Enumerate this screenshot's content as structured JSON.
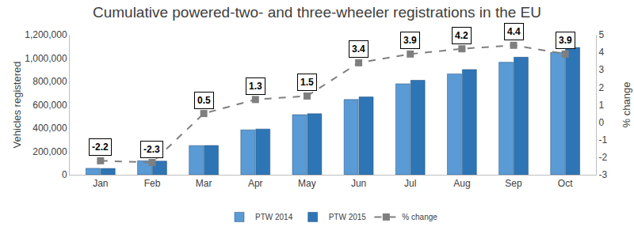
{
  "chart_data": {
    "type": "bar",
    "title": "Cumulative powered-two- and three-wheeler registrations in the EU",
    "y_label": "Vehicles registered",
    "y2_label": "% change",
    "categories": [
      "Jan",
      "Feb",
      "Mar",
      "Apr",
      "May",
      "Jun",
      "Jul",
      "Aug",
      "Sep",
      "Oct"
    ],
    "series": [
      {
        "name": "PTW 2014",
        "type": "bar",
        "color": "#5b9bd5",
        "values": [
          55000,
          120000,
          250000,
          385000,
          515000,
          645000,
          780000,
          865000,
          965000,
          1050000
        ]
      },
      {
        "name": "PTW 2015",
        "type": "bar",
        "color": "#2e75b6",
        "values": [
          54000,
          117000,
          251000,
          392000,
          523000,
          667000,
          810000,
          902000,
          1008000,
          1091000
        ]
      },
      {
        "name": "% change",
        "type": "line",
        "axis": "y2",
        "color": "#7f7f7f",
        "marker": "square",
        "line_style": "dash",
        "data_labels": true,
        "values": [
          -2.2,
          -2.3,
          0.5,
          1.3,
          1.5,
          3.4,
          3.9,
          4.2,
          4.4,
          3.9
        ]
      }
    ],
    "ylim": [
      0,
      1200000
    ],
    "yticks": [
      0,
      {
        "value": 200000,
        "label": "200,000"
      },
      {
        "value": 400000,
        "label": "400,000"
      },
      {
        "value": 600000,
        "label": "600,000"
      },
      {
        "value": 800000,
        "label": "800,000"
      },
      {
        "value": 1000000,
        "label": "1,000,000"
      },
      {
        "value": 1200000,
        "label": "1,200,000"
      }
    ],
    "y2lim": [
      -3,
      5
    ],
    "y2ticks": [
      -3,
      -2,
      -1,
      0,
      1,
      2,
      3,
      4,
      5
    ],
    "grid": false,
    "legend": "bottom"
  }
}
